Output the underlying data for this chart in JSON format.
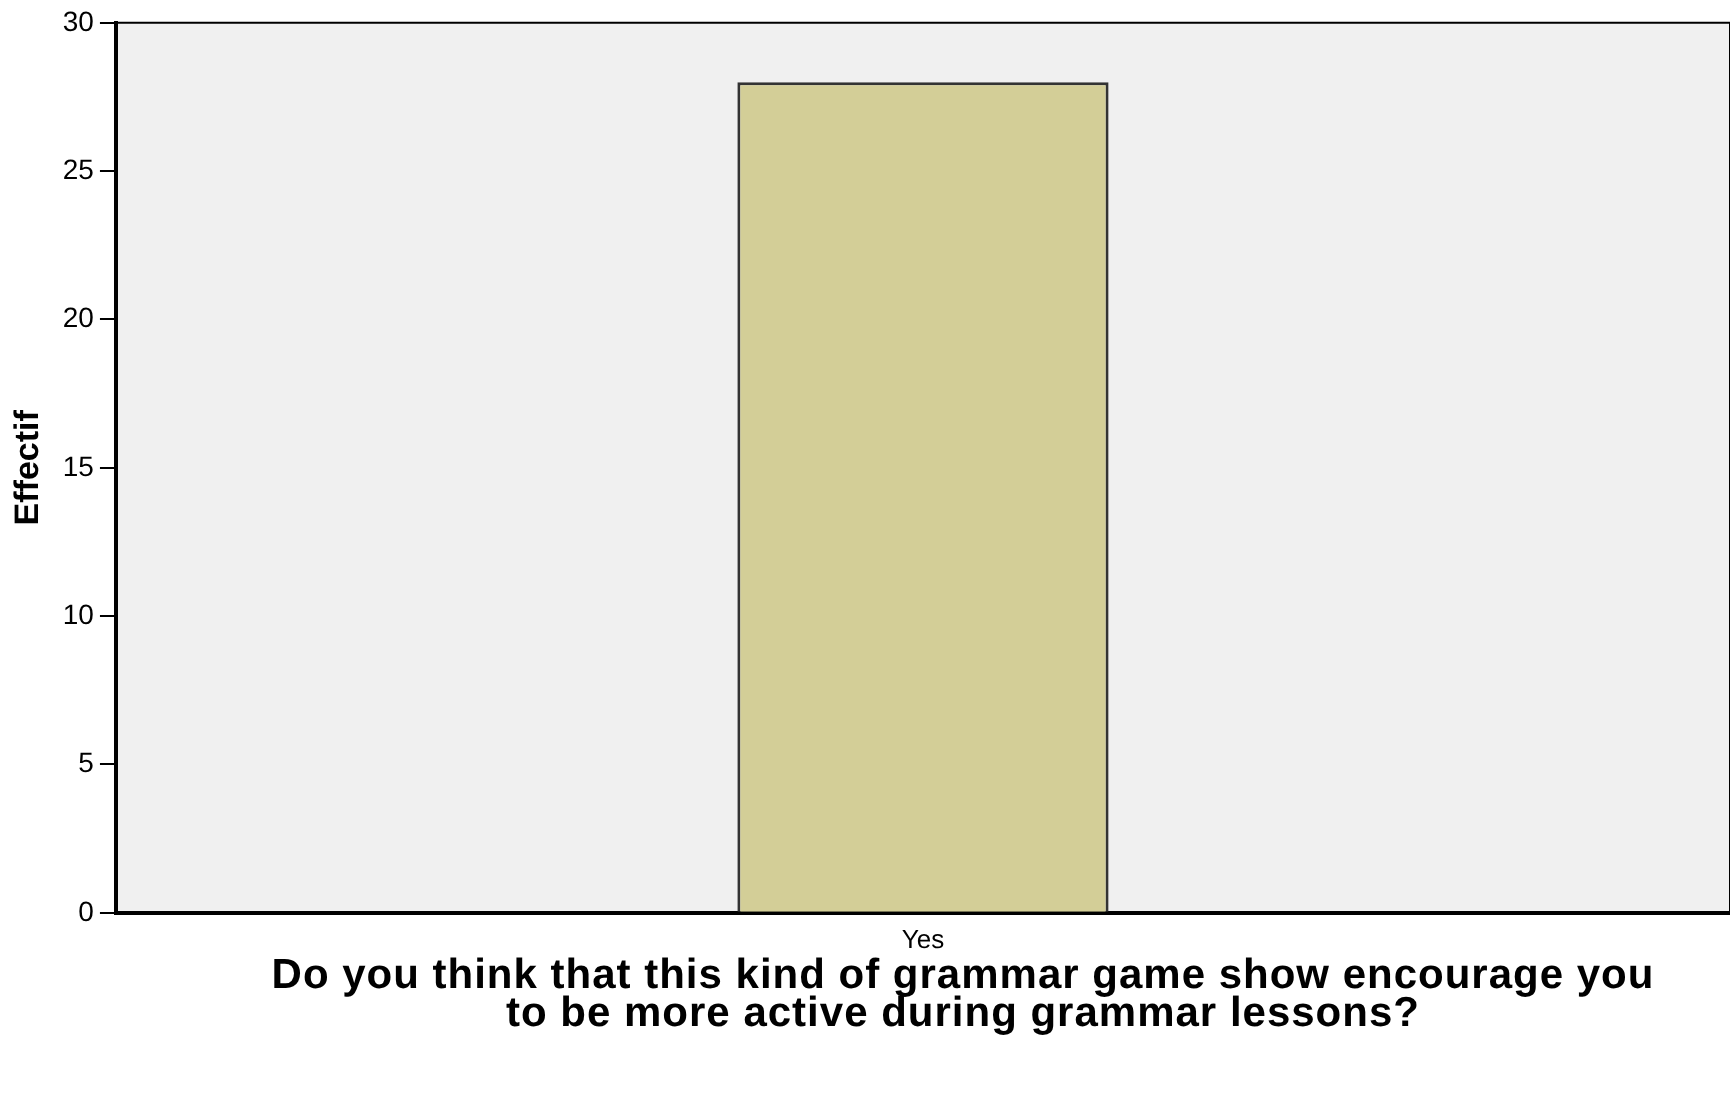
{
  "chart_data": {
    "type": "bar",
    "xlabel": "Do you think that this kind of grammar game show encourage you to be more active during grammar lessons?",
    "ylabel": "Effectif",
    "categories": [
      "Yes"
    ],
    "values": [
      28
    ],
    "color": "#d3ce97",
    "ylim": [
      0,
      30
    ],
    "yticks": [
      0,
      5,
      10,
      15,
      20,
      25,
      30
    ],
    "grid": false,
    "legend": false
  }
}
